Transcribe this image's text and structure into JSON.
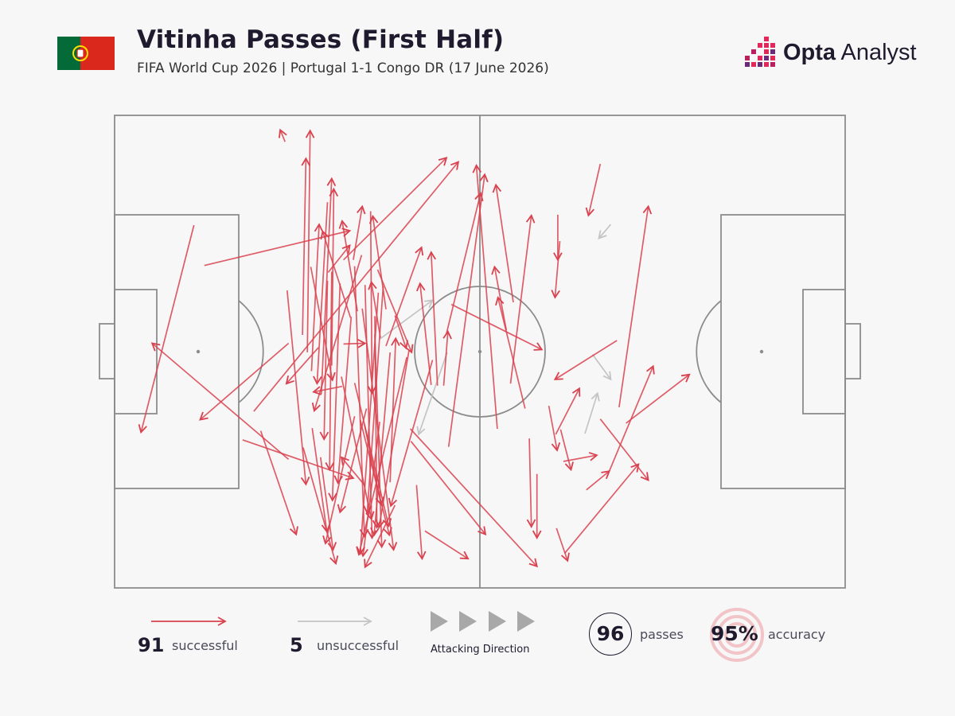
{
  "header": {
    "title": "Vitinha Passes (First Half)",
    "subtitle": "FIFA World Cup 2026 | Portugal 1-1 Congo DR (17 June 2026)",
    "brand_bold": "Opta",
    "brand_light": " Analyst",
    "flag_colors": {
      "green": "#046a38",
      "red": "#da291c",
      "gold": "#ffe000"
    }
  },
  "legend": {
    "successful_count": "91",
    "successful_label": "successful",
    "unsuccessful_count": "5",
    "unsuccessful_label": "unsuccessful",
    "direction_label": "Attacking Direction",
    "passes_count": "96",
    "passes_label": "passes",
    "accuracy_value": "95%",
    "accuracy_label": "accuracy"
  },
  "colors": {
    "successful": "#d9414e",
    "unsuccessful": "#c4c4c4",
    "pitch_lines": "#8c8c8c",
    "accuracy_rings": "#f2c4c8",
    "brand_accent": "#e0285a"
  },
  "chart_data": {
    "type": "scatter",
    "pitch": {
      "length": 105,
      "width": 68,
      "attacking_direction": "left-to-right"
    },
    "successful_passes": [
      [
        11.4,
        15.8,
        3.8,
        45.6
      ],
      [
        25.0,
        49.5,
        5.4,
        32.8
      ],
      [
        25.0,
        32.8,
        12.3,
        43.8
      ],
      [
        12.9,
        21.6,
        33.8,
        16.6
      ],
      [
        18.4,
        46.7,
        34.3,
        52.2
      ],
      [
        21.0,
        45.4,
        26.1,
        60.3
      ],
      [
        24.8,
        25.2,
        27.5,
        53.1
      ],
      [
        27.1,
        47.8,
        31.8,
        64.5
      ],
      [
        29.6,
        49.2,
        31.4,
        62.5
      ],
      [
        28.4,
        45.0,
        30.5,
        59.9
      ],
      [
        34.5,
        43.3,
        30.3,
        61.6
      ],
      [
        36.2,
        42.2,
        32.4,
        57.1
      ],
      [
        36.0,
        53.3,
        32.6,
        49.2
      ],
      [
        32.6,
        37.6,
        36.9,
        58.1
      ],
      [
        34.5,
        38.5,
        39.4,
        59.1
      ],
      [
        38.1,
        44.1,
        35.7,
        63.4
      ],
      [
        40.3,
        56.1,
        36.0,
        65.0
      ],
      [
        39.6,
        34.1,
        37.3,
        60.4
      ],
      [
        42.0,
        34.8,
        35.1,
        63.2
      ],
      [
        43.4,
        53.2,
        44.2,
        63.8
      ],
      [
        44.6,
        59.8,
        50.8,
        63.8
      ],
      [
        42.6,
        46.9,
        53.3,
        60.3
      ],
      [
        42.5,
        45.1,
        60.7,
        64.9
      ],
      [
        35.3,
        43.8,
        39.5,
        60.4
      ],
      [
        35.9,
        44.5,
        38.3,
        56.0
      ],
      [
        31.2,
        22.5,
        30.9,
        51.0
      ],
      [
        34.0,
        29.0,
        32.1,
        52.9
      ],
      [
        32.4,
        24.2,
        31.3,
        55.4
      ],
      [
        36.0,
        24.4,
        37.0,
        60.8
      ],
      [
        35.6,
        27.8,
        40.1,
        62.5
      ],
      [
        37.4,
        28.9,
        37.7,
        59.3
      ],
      [
        38.6,
        24.6,
        36.3,
        57.2
      ],
      [
        34.5,
        21.7,
        35.9,
        60.6
      ],
      [
        37.4,
        31.5,
        38.4,
        62.1
      ],
      [
        37.9,
        25.5,
        35.3,
        63.1
      ],
      [
        42.3,
        33.9,
        38.0,
        59.3
      ],
      [
        45.7,
        35.2,
        39.7,
        56.2
      ],
      [
        28.2,
        21.8,
        31.3,
        38.1
      ],
      [
        35.5,
        20.1,
        28.7,
        42.5
      ],
      [
        30.6,
        12.5,
        29.1,
        38.6
      ],
      [
        30.6,
        23.8,
        30.1,
        46.6
      ],
      [
        36.8,
        13.8,
        37.0,
        40.0
      ],
      [
        37.8,
        22.2,
        42.7,
        34.1
      ],
      [
        40.3,
        28.8,
        41.9,
        33.5
      ],
      [
        32.7,
        39.0,
        28.6,
        39.8
      ],
      [
        32.9,
        32.9,
        36.0,
        32.8
      ],
      [
        39.6,
        52.8,
        40.4,
        32.1
      ],
      [
        38.2,
        32.0,
        36.9,
        24.0
      ],
      [
        34.9,
        28.2,
        32.7,
        15.2
      ],
      [
        39.0,
        27.9,
        37.1,
        14.5
      ],
      [
        34.3,
        20.8,
        35.6,
        13.1
      ],
      [
        33.9,
        29.1,
        29.9,
        16.7
      ],
      [
        30.7,
        22.6,
        33.8,
        18.7
      ],
      [
        28.3,
        36.8,
        29.4,
        15.7
      ],
      [
        29.7,
        40.1,
        31.2,
        9.1
      ],
      [
        27.7,
        34.1,
        28.1,
        2.2
      ],
      [
        27.0,
        31.6,
        27.5,
        6.2
      ],
      [
        24.5,
        3.8,
        23.8,
        2.1
      ],
      [
        20.0,
        42.6,
        49.4,
        6.7
      ],
      [
        32.9,
        20.8,
        47.7,
        6.1
      ],
      [
        31.2,
        36.0,
        31.5,
        10.6
      ],
      [
        29.3,
        33.4,
        24.7,
        38.6
      ],
      [
        47.7,
        31.4,
        52.6,
        11.2
      ],
      [
        48.0,
        47.7,
        53.2,
        8.5
      ],
      [
        39.0,
        33.2,
        44.1,
        19.0
      ],
      [
        45.5,
        38.8,
        43.9,
        24.2
      ],
      [
        46.4,
        38.9,
        45.5,
        19.7
      ],
      [
        47.3,
        38.9,
        47.9,
        31.1
      ],
      [
        57.3,
        26.9,
        54.8,
        10.0
      ],
      [
        56.3,
        30.9,
        54.6,
        21.8
      ],
      [
        59.0,
        42.2,
        55.1,
        26.2
      ],
      [
        55.0,
        45.1,
        52.0,
        7.2
      ],
      [
        56.9,
        38.6,
        59.9,
        14.4
      ],
      [
        48.4,
        27.2,
        61.4,
        33.7
      ],
      [
        64.0,
        18.1,
        63.3,
        26.2
      ],
      [
        63.7,
        14.3,
        63.7,
        20.8
      ],
      [
        69.8,
        7.0,
        68.1,
        14.4
      ],
      [
        72.2,
        32.4,
        63.3,
        38.0
      ],
      [
        62.4,
        41.8,
        63.6,
        48.2
      ],
      [
        63.5,
        59.4,
        65.1,
        64.1
      ],
      [
        64.7,
        63.0,
        75.3,
        50.2
      ],
      [
        64.5,
        49.8,
        69.3,
        48.9
      ],
      [
        60.7,
        51.6,
        60.7,
        60.8
      ],
      [
        59.6,
        46.5,
        59.9,
        59.2
      ],
      [
        64.1,
        45.2,
        65.6,
        51.0
      ],
      [
        67.8,
        53.9,
        71.1,
        51.2
      ],
      [
        70.8,
        51.9,
        77.4,
        36.1
      ],
      [
        69.8,
        43.7,
        76.7,
        52.5
      ],
      [
        73.5,
        44.3,
        82.6,
        37.3
      ],
      [
        63.4,
        45.9,
        66.8,
        39.3
      ],
      [
        72.5,
        42.0,
        76.7,
        13.1
      ]
    ],
    "unsuccessful_passes": [
      [
        47.8,
        34.1,
        43.7,
        45.9
      ],
      [
        38.1,
        32.2,
        45.7,
        26.6
      ],
      [
        71.3,
        15.7,
        69.6,
        17.7
      ],
      [
        68.7,
        34.4,
        71.3,
        38.0
      ],
      [
        67.6,
        45.8,
        69.4,
        40.0
      ]
    ]
  }
}
